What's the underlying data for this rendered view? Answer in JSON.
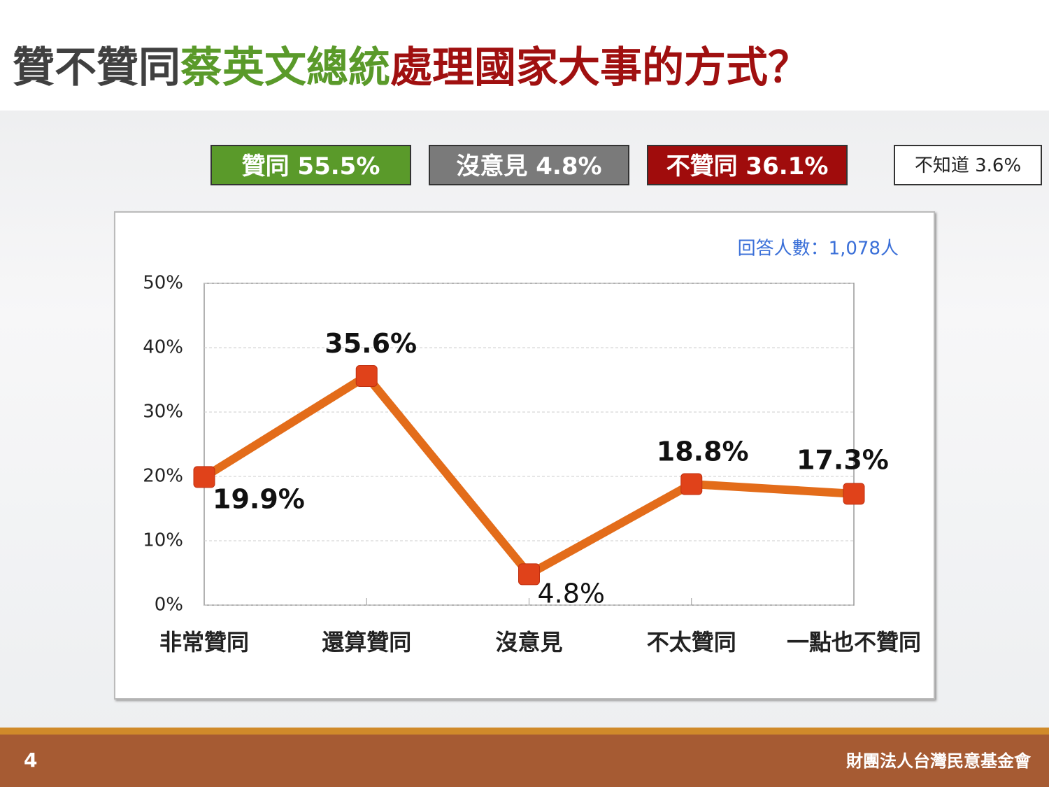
{
  "title": {
    "parts": [
      "贊不贊同",
      "蔡英文總統",
      "處理國家大事的方式？"
    ]
  },
  "summary": [
    "贊同 55.5%",
    "沒意見 4.8%",
    "不贊同 36.1%",
    "不知道 3.6%"
  ],
  "chart_data": {
    "type": "line",
    "annotation": "回答人數：1,078人",
    "categories": [
      "非常贊同",
      "還算贊同",
      "沒意見",
      "不太贊同",
      "一點也不贊同"
    ],
    "values": [
      19.9,
      35.6,
      4.8,
      18.8,
      17.3
    ],
    "value_labels": [
      "19.9%",
      "35.6%",
      "4.8%",
      "18.8%",
      "17.3%"
    ],
    "color": "#e36c1a",
    "marker_color": "#e0421a",
    "ylim": [
      0,
      50
    ],
    "yticks": [
      {
        "value": 0,
        "label": "0%"
      },
      {
        "value": 10,
        "label": "10%"
      },
      {
        "value": 20,
        "label": "20%"
      },
      {
        "value": 30,
        "label": "30%"
      },
      {
        "value": 40,
        "label": "40%"
      },
      {
        "value": 50,
        "label": "50%"
      }
    ],
    "grid": true
  },
  "footer": {
    "page": "4",
    "organization": "財團法人台灣民意基金會"
  }
}
